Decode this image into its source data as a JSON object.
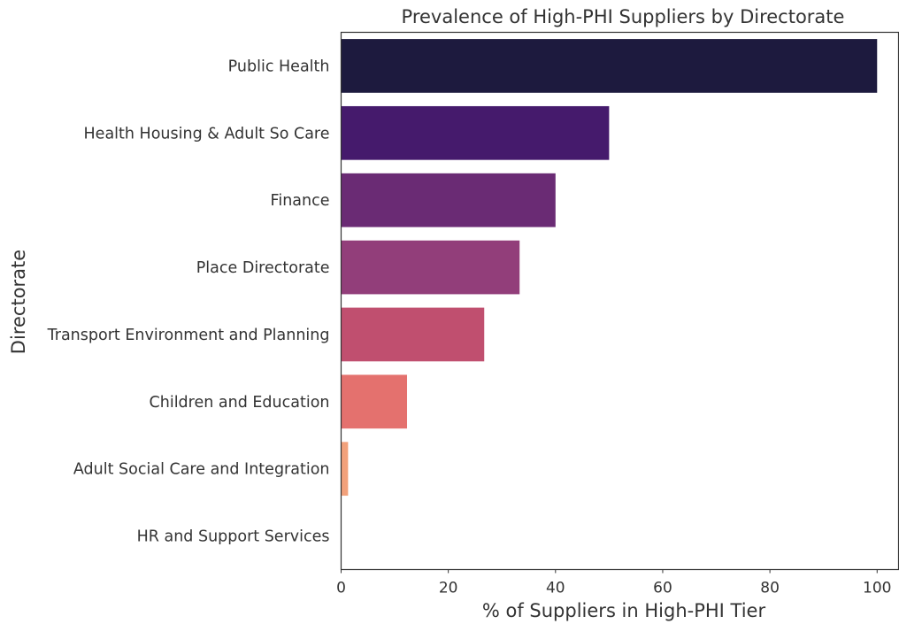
{
  "chart_data": {
    "type": "bar",
    "orientation": "horizontal",
    "title": "Prevalence of High-PHI Suppliers by Directorate",
    "xlabel": "% of Suppliers in High-PHI Tier",
    "ylabel": "Directorate",
    "xlim": [
      0,
      104
    ],
    "xticks": [
      0,
      20,
      40,
      60,
      80,
      100
    ],
    "grid": false,
    "categories": [
      "Public Health",
      "Health Housing & Adult So Care",
      "Finance",
      "Place Directorate",
      "Transport Environment and Planning",
      "Children and Education",
      "Adult Social Care and Integration",
      "HR and Support Services"
    ],
    "values": [
      100,
      50,
      40,
      33.3,
      26.7,
      12.3,
      1.3,
      0
    ],
    "colors": [
      "#1d1a3e",
      "#451a6c",
      "#6a2b74",
      "#923e7a",
      "#c04f6f",
      "#e4716e",
      "#f2a17b",
      "#f7c08f"
    ]
  }
}
